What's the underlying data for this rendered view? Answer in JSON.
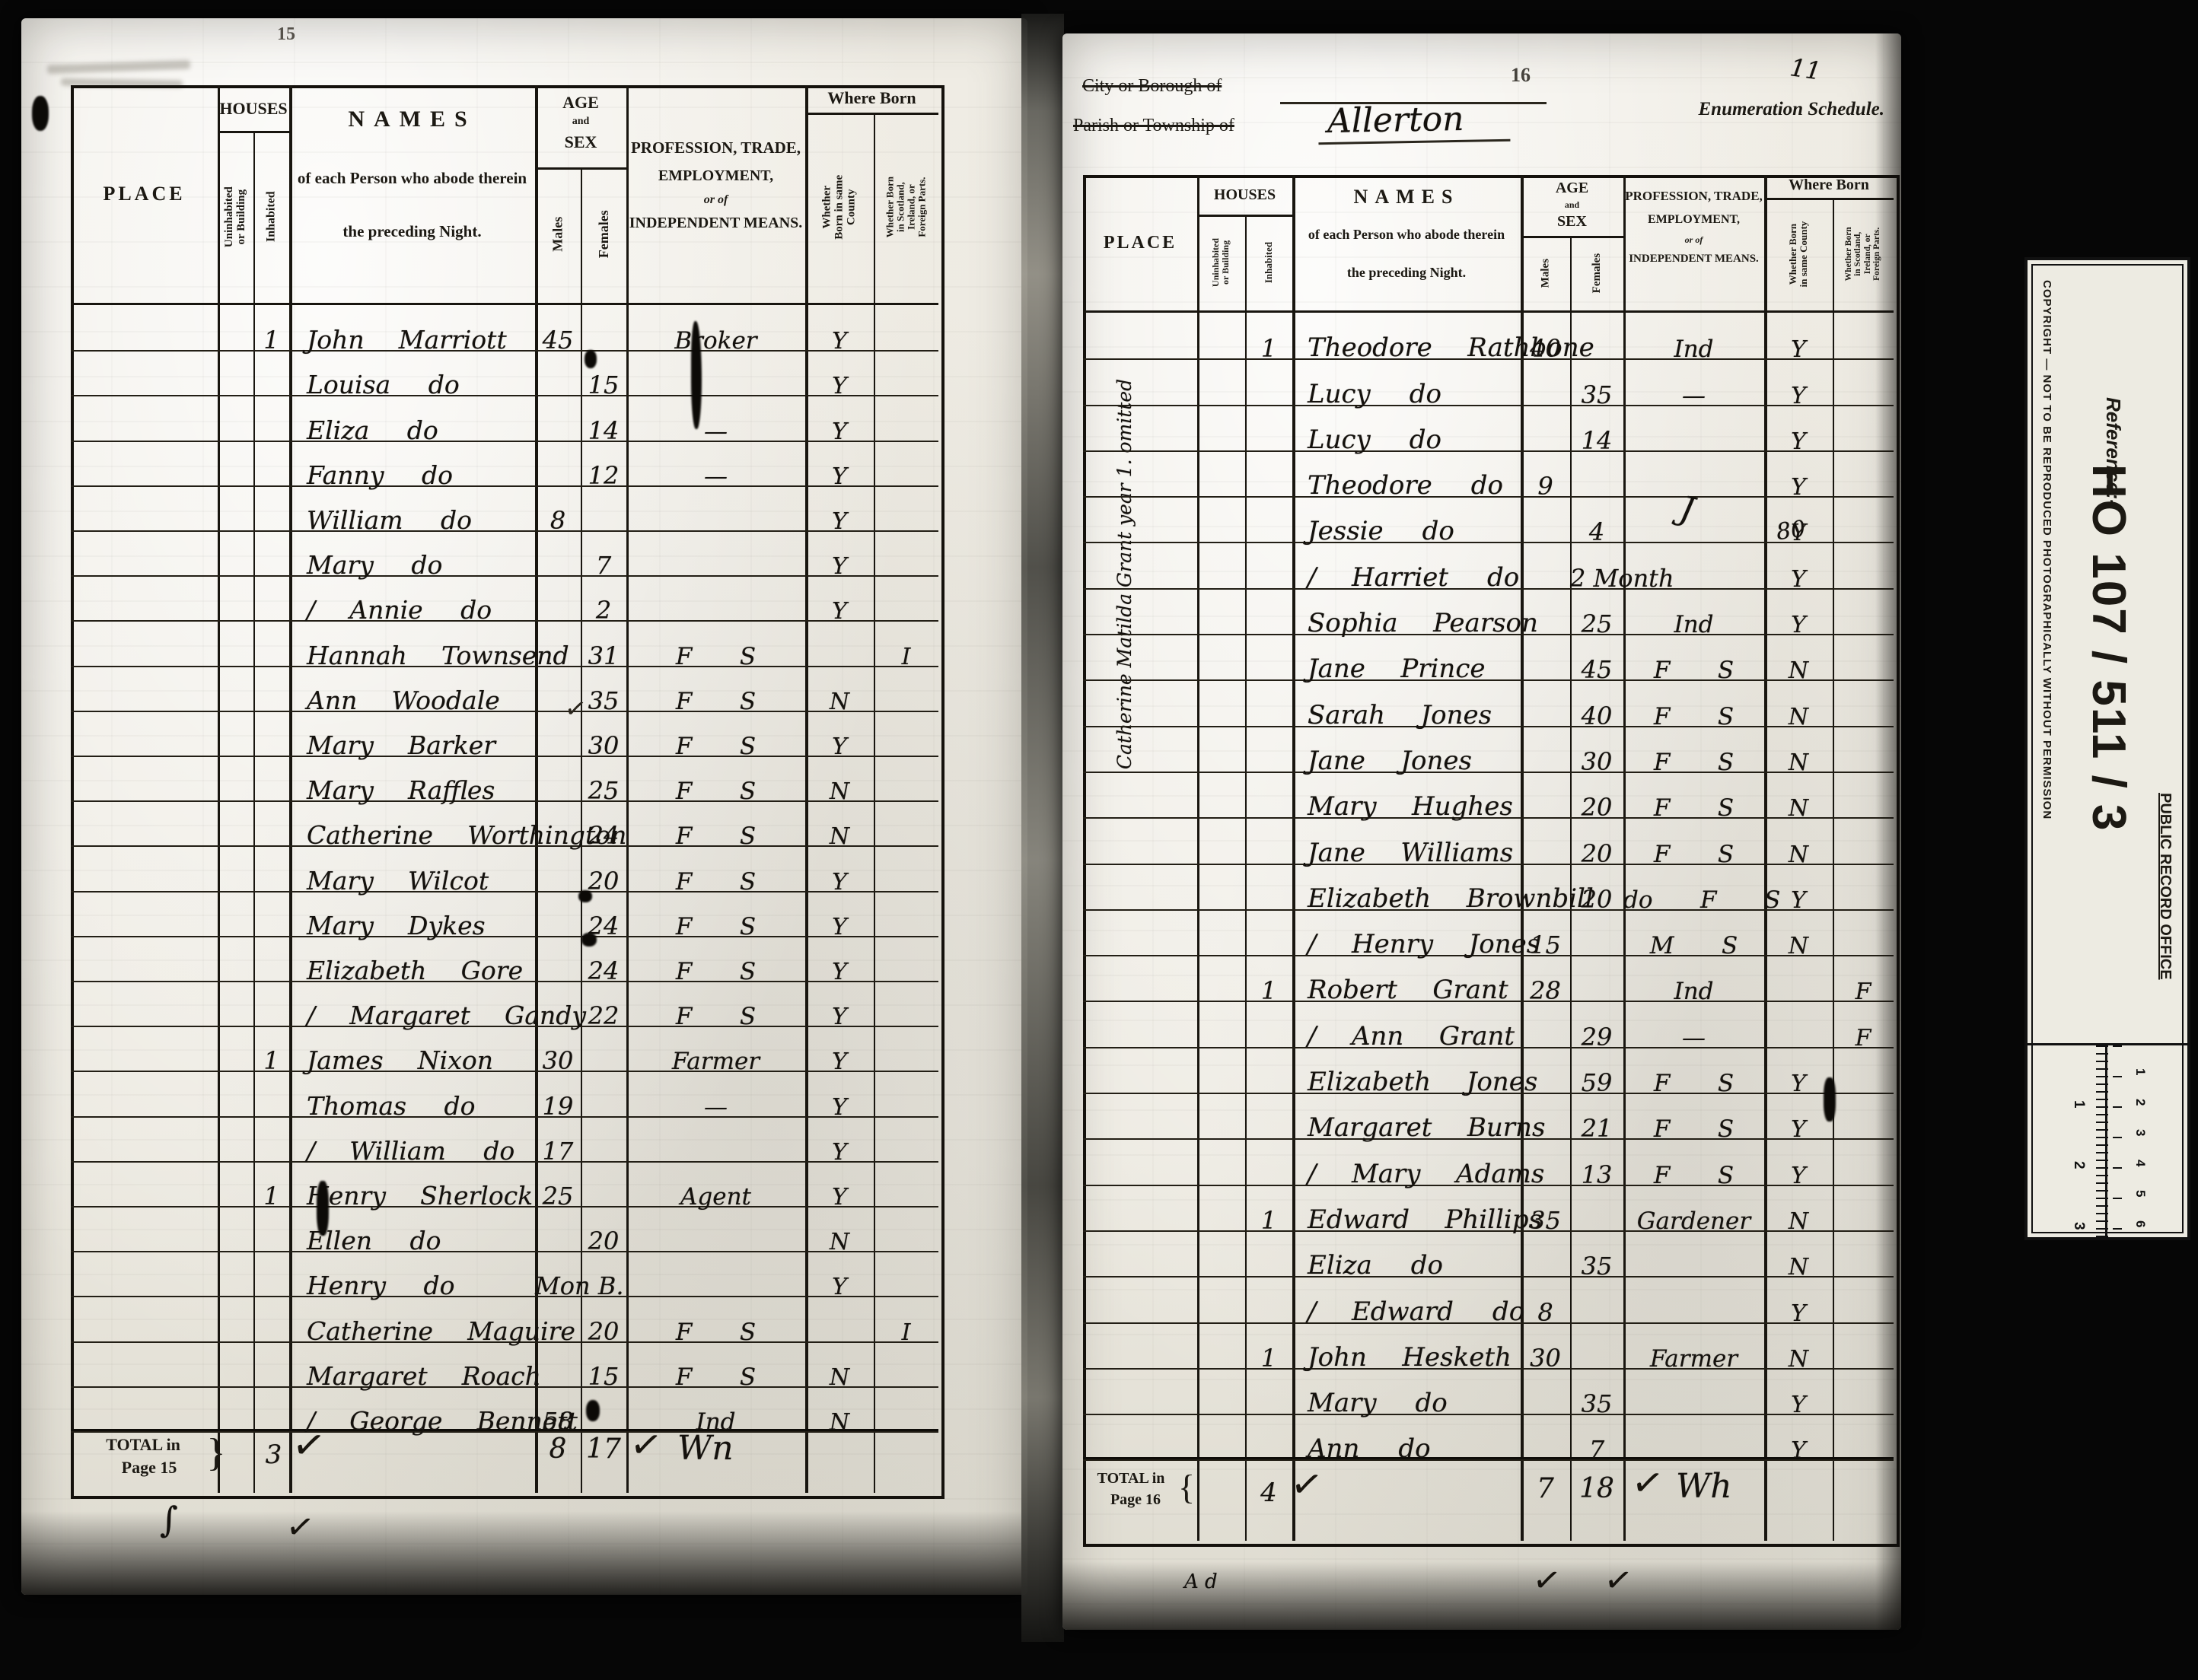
{
  "columns": {
    "place": "PLACE",
    "houses": "HOUSES",
    "uninhabited": "Uninhabited or Building",
    "inhabited": "Inhabited",
    "names_title": "NAMES",
    "names_sub1": "of each Person who abode therein",
    "names_sub2": "the preceding Night.",
    "age1": "AGE",
    "age2": "and",
    "age3": "SEX",
    "males": "Males",
    "females": "Females",
    "prof1": "PROFESSION, TRADE,",
    "prof2": "EMPLOYMENT,",
    "prof3": "or of",
    "prof4": "INDEPENDENT MEANS.",
    "where_born": "Where Born",
    "wb1": "Whether Born in same County",
    "wb2": "Whether Born in Scotland, Ireland, or Foreign Parts."
  },
  "left_page": {
    "page_number": "15",
    "table": {
      "rows": [
        {
          "inh": "1",
          "name": "John Marriott",
          "m": "45",
          "prof": "Broker",
          "wb1": "Y"
        },
        {
          "name": "Louisa do",
          "f": "15",
          "wb1": "Y"
        },
        {
          "name": "Eliza do",
          "f": "14",
          "prof": "—",
          "wb1": "Y"
        },
        {
          "name": "Fanny do",
          "f": "12",
          "prof": "—",
          "wb1": "Y"
        },
        {
          "name": "William do",
          "m": "8",
          "wb1": "Y"
        },
        {
          "name": "Mary do",
          "f": "7",
          "wb1": "Y"
        },
        {
          "name": "/ Annie do",
          "f": "2",
          "wb1": "Y"
        },
        {
          "name": "Hannah Townsend",
          "f": "31",
          "prof": "F S",
          "wb2": "I"
        },
        {
          "name": "Ann Woodale",
          "f": "35",
          "prof": "F S",
          "wb1": "N"
        },
        {
          "name": "Mary Barker",
          "f": "30",
          "prof": "F S",
          "wb1": "Y"
        },
        {
          "name": "Mary Raffles",
          "f": "25",
          "prof": "F S",
          "wb1": "N"
        },
        {
          "name": "Catherine Worthington",
          "f": "24",
          "prof": "F S",
          "wb1": "N"
        },
        {
          "name": "Mary Wilcot",
          "f": "20",
          "prof": "F S",
          "wb1": "Y"
        },
        {
          "name": "Mary Dykes",
          "f": "24",
          "prof": "F S",
          "wb1": "Y"
        },
        {
          "name": "Elizabeth Gore",
          "f": "24",
          "prof": "F S",
          "wb1": "Y"
        },
        {
          "name": "/ Margaret Gandy",
          "f": "22",
          "prof": "F S",
          "wb1": "Y"
        },
        {
          "inh": "1",
          "name": "James Nixon",
          "m": "30",
          "prof": "Farmer",
          "wb1": "Y"
        },
        {
          "name": "Thomas do",
          "m": "19",
          "prof": "—",
          "wb1": "Y"
        },
        {
          "name": "/ William do",
          "m": "17",
          "wb1": "Y"
        },
        {
          "inh": "1",
          "name": "Henry Sherlock",
          "m": "25",
          "prof": "Agent",
          "wb1": "Y"
        },
        {
          "name": "Ellen do",
          "f": "20",
          "wb1": "N"
        },
        {
          "name": "Henry do",
          "m": "Mon B.",
          "wb1": "Y"
        },
        {
          "name": "Catherine Maguire",
          "f": "20",
          "prof": "F S",
          "wb2": "I"
        },
        {
          "name": "Margaret Roach",
          "f": "15",
          "prof": "F S",
          "wb1": "N"
        },
        {
          "name": "/ George Bennett",
          "m": "58",
          "prof": "Ind",
          "wb1": "N"
        }
      ],
      "total": {
        "label1": "TOTAL in",
        "label2": "Page 15",
        "brace": "}",
        "inhabited": "3",
        "males": "8",
        "females": "17",
        "check": "✓",
        "note": "Wn"
      }
    },
    "marks": {
      "mid_check": "✓",
      "below_check": "✓",
      "below_swash": "∫"
    }
  },
  "right_page": {
    "page_number": "16",
    "folio_mark": "11",
    "header_form": {
      "city_label": "City or Borough of",
      "parish_label": "Parish or Township of",
      "parish_value": "Allerton",
      "schedule_label": "Enumeration Schedule."
    },
    "margin_note": "Catherine Matilda Grant   year 1. omitted",
    "table": {
      "rows": [
        {
          "inh": "1",
          "name": "Theodore Rathbone",
          "m": "40",
          "prof": "Ind",
          "wb1": "Y"
        },
        {
          "name": "Lucy do",
          "f": "35",
          "prof": "—",
          "wb1": "Y"
        },
        {
          "name": "Lucy do",
          "f": "14",
          "wb1": "Y"
        },
        {
          "name": "Theodore do",
          "m": "9",
          "wb1": "Y"
        },
        {
          "name": "Jessie do",
          "f": "4",
          "wb1": "Y"
        },
        {
          "name": "/ Harriet do",
          "f": "2 Month",
          "wb1": "Y"
        },
        {
          "name": "Sophia Pearson",
          "f": "25",
          "prof": "Ind",
          "wb1": "Y"
        },
        {
          "name": "Jane Prince",
          "f": "45",
          "prof": "F S",
          "wb1": "N"
        },
        {
          "name": "Sarah Jones",
          "f": "40",
          "prof": "F S",
          "wb1": "N"
        },
        {
          "name": "Jane Jones",
          "f": "30",
          "prof": "F S",
          "wb1": "N"
        },
        {
          "name": "Mary Hughes",
          "f": "20",
          "prof": "F S",
          "wb1": "N"
        },
        {
          "name": "Jane Williams",
          "f": "20",
          "prof": "F S",
          "wb1": "N"
        },
        {
          "name": "Elizabeth Brownbill",
          "f": "20",
          "prof": "do F S",
          "wb1": "Y"
        },
        {
          "name": "/ Henry Jones",
          "m": "15",
          "prof": "M S",
          "wb1": "N"
        },
        {
          "inh": "1",
          "name": "Robert Grant",
          "m": "28",
          "prof": "Ind",
          "wb2": "F"
        },
        {
          "name": "/ Ann Grant",
          "f": "29",
          "prof": "—",
          "wb2": "F"
        },
        {
          "name": "Elizabeth Jones",
          "f": "59",
          "prof": "F S",
          "wb1": "Y"
        },
        {
          "name": "Margaret Burns",
          "f": "21",
          "prof": "F S",
          "wb1": "Y"
        },
        {
          "name": "/ Mary Adams",
          "f": "13",
          "prof": "F S",
          "wb1": "Y"
        },
        {
          "inh": "1",
          "name": "Edward Phillips",
          "m": "35",
          "prof": "Gardener",
          "wb1": "N"
        },
        {
          "name": "Eliza do",
          "f": "35",
          "wb1": "N"
        },
        {
          "name": "/ Edward do",
          "m": "8",
          "wb1": "Y"
        },
        {
          "inh": "1",
          "name": "John Hesketh",
          "m": "30",
          "prof": "Farmer",
          "wb1": "N"
        },
        {
          "name": "Mary do",
          "f": "35",
          "wb1": "Y"
        },
        {
          "name": "Ann do",
          "f": "7",
          "wb1": "Y"
        }
      ],
      "total": {
        "label1": "TOTAL in",
        "label2": "Page 16",
        "brace": "{",
        "inhabited": "4",
        "males": "7",
        "females": "18",
        "check": "✓",
        "note": "Wh"
      }
    },
    "marks": {
      "flourish_80": "80",
      "flourish_j": "J",
      "bottom_left": "A d",
      "below_check1": "✓",
      "below_check2": "✓"
    }
  },
  "stamp_card": {
    "reference_label": "Reference:-",
    "reference_number": "HO 107 / 511 / 3",
    "office_name": "PUBLIC RECORD OFFICE",
    "copyright_notice": "COPYRIGHT — NOT TO BE REPRODUCED PHOTOGRAPHICALLY WITHOUT PERMISSION",
    "ruler_inch_labels": [
      "1",
      "2",
      "3"
    ],
    "ruler_cm_labels": [
      "1",
      "2",
      "3",
      "4",
      "5",
      "6"
    ]
  }
}
